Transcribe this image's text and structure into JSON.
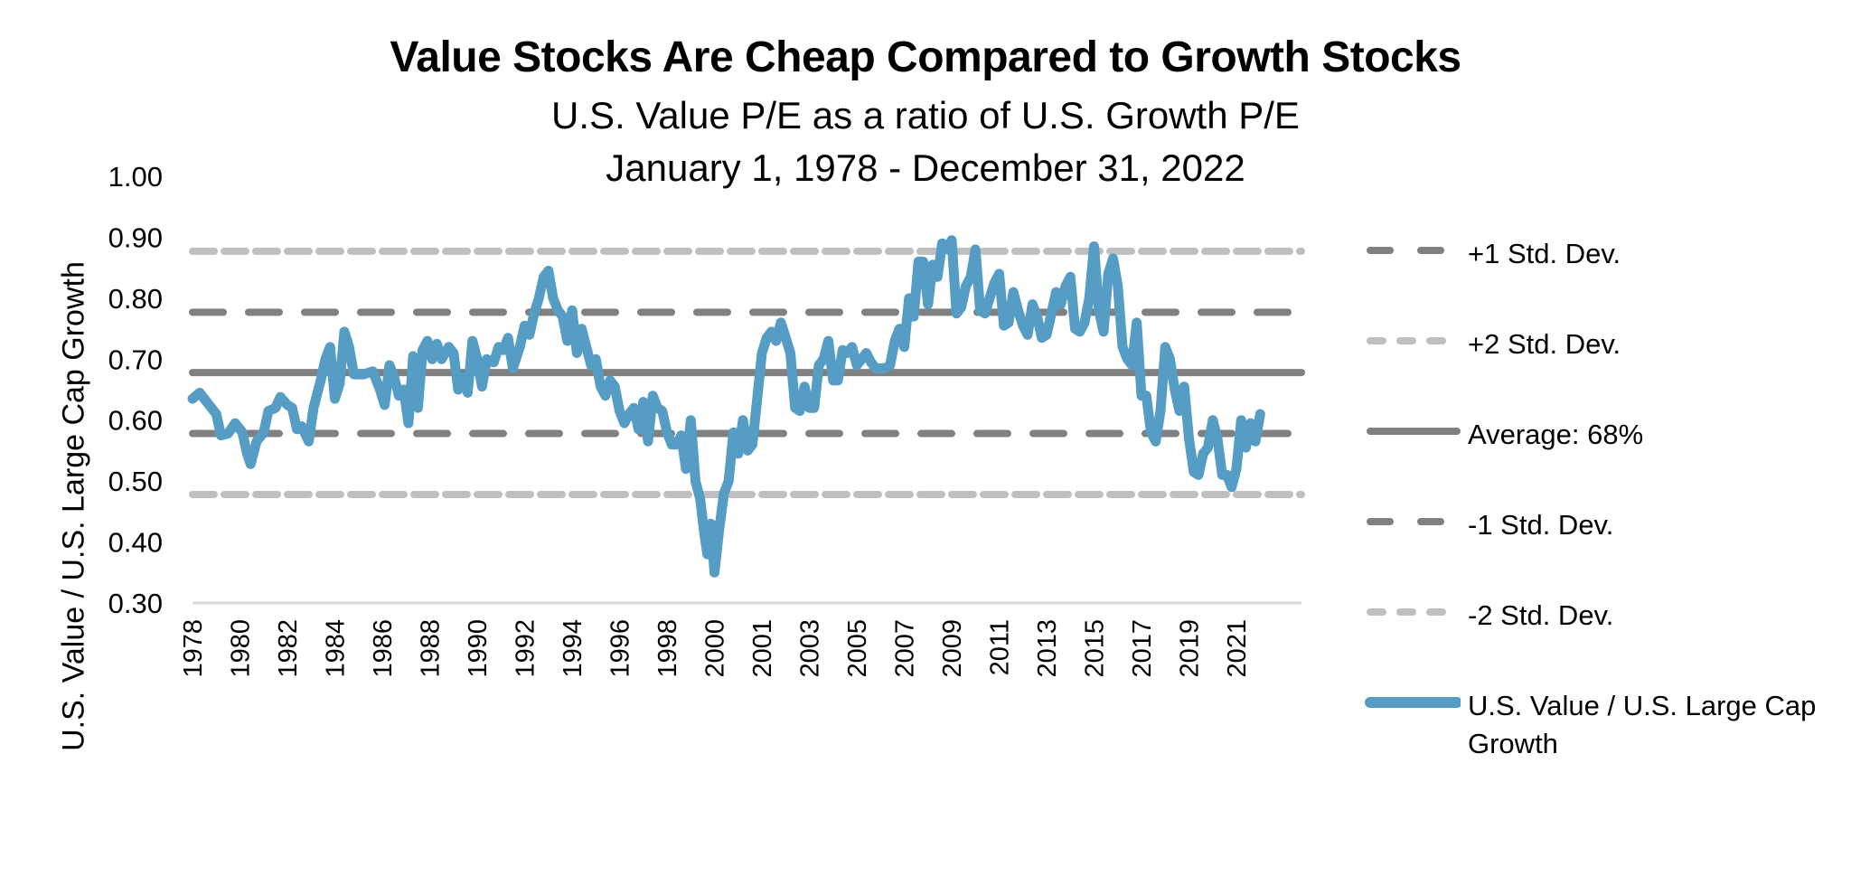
{
  "chart_data": {
    "type": "line",
    "title": "Value Stocks Are Cheap Compared to Growth Stocks",
    "subtitle": [
      "U.S. Value P/E as a ratio of U.S. Growth P/E",
      "January 1, 1978 - December 31, 2022"
    ],
    "xlabel": "",
    "ylabel": "U.S. Value / U.S. Large Cap Growth",
    "ylim": [
      0.3,
      1.0
    ],
    "yticks": [
      "1.00",
      "0.90",
      "0.80",
      "0.70",
      "0.60",
      "0.50",
      "0.40",
      "0.30"
    ],
    "ytick_values": [
      1.0,
      0.9,
      0.8,
      0.7,
      0.6,
      0.5,
      0.4,
      0.3
    ],
    "xticks": [
      "1978",
      "1980",
      "1982",
      "1984",
      "1986",
      "1988",
      "1990",
      "1992",
      "1994",
      "1996",
      "1998",
      "2000",
      "2001",
      "2003",
      "2005",
      "2007",
      "2009",
      "2011",
      "2013",
      "2015",
      "2017",
      "2019",
      "2021"
    ],
    "grid": false,
    "legend_position": "right",
    "reference_lines": [
      {
        "name": "+1 Std. Dev.",
        "value": 0.777,
        "style": "dash",
        "color": "#808080"
      },
      {
        "name": "+2 Std. Dev.",
        "value": 0.877,
        "style": "short-dash",
        "color": "#bfbfbf"
      },
      {
        "name": "Average: 68%",
        "value": 0.678,
        "style": "solid",
        "color": "#808080"
      },
      {
        "name": "-1 Std. Dev.",
        "value": 0.578,
        "style": "dash",
        "color": "#808080"
      },
      {
        "name": "-2 Std. Dev.",
        "value": 0.478,
        "style": "short-dash",
        "color": "#bfbfbf"
      }
    ],
    "series": [
      {
        "name": "U.S. Value / U.S. Large Cap Growth",
        "color": "#559dc4",
        "points": [
          [
            1978.0,
            0.635
          ],
          [
            1978.3,
            0.645
          ],
          [
            1978.6,
            0.63
          ],
          [
            1979.0,
            0.61
          ],
          [
            1979.2,
            0.575
          ],
          [
            1979.5,
            0.578
          ],
          [
            1979.8,
            0.595
          ],
          [
            1980.1,
            0.58
          ],
          [
            1980.3,
            0.545
          ],
          [
            1980.45,
            0.528
          ],
          [
            1980.7,
            0.565
          ],
          [
            1981.0,
            0.58
          ],
          [
            1981.2,
            0.615
          ],
          [
            1981.5,
            0.62
          ],
          [
            1981.7,
            0.638
          ],
          [
            1982.0,
            0.625
          ],
          [
            1982.2,
            0.62
          ],
          [
            1982.4,
            0.585
          ],
          [
            1982.6,
            0.59
          ],
          [
            1982.9,
            0.565
          ],
          [
            1983.1,
            0.62
          ],
          [
            1983.4,
            0.665
          ],
          [
            1983.6,
            0.7
          ],
          [
            1983.8,
            0.72
          ],
          [
            1984.0,
            0.635
          ],
          [
            1984.2,
            0.66
          ],
          [
            1984.4,
            0.745
          ],
          [
            1984.6,
            0.72
          ],
          [
            1984.8,
            0.675
          ],
          [
            1985.2,
            0.675
          ],
          [
            1985.6,
            0.68
          ],
          [
            1985.9,
            0.65
          ],
          [
            1986.1,
            0.625
          ],
          [
            1986.3,
            0.69
          ],
          [
            1986.5,
            0.67
          ],
          [
            1986.7,
            0.64
          ],
          [
            1986.9,
            0.65
          ],
          [
            1987.1,
            0.595
          ],
          [
            1987.3,
            0.705
          ],
          [
            1987.5,
            0.62
          ],
          [
            1987.7,
            0.715
          ],
          [
            1987.9,
            0.73
          ],
          [
            1988.1,
            0.7
          ],
          [
            1988.3,
            0.725
          ],
          [
            1988.5,
            0.7
          ],
          [
            1988.8,
            0.72
          ],
          [
            1989.0,
            0.71
          ],
          [
            1989.2,
            0.65
          ],
          [
            1989.4,
            0.67
          ],
          [
            1989.6,
            0.645
          ],
          [
            1989.8,
            0.73
          ],
          [
            1990.0,
            0.7
          ],
          [
            1990.2,
            0.655
          ],
          [
            1990.4,
            0.7
          ],
          [
            1990.7,
            0.695
          ],
          [
            1990.9,
            0.72
          ],
          [
            1991.1,
            0.715
          ],
          [
            1991.3,
            0.735
          ],
          [
            1991.5,
            0.685
          ],
          [
            1991.8,
            0.72
          ],
          [
            1992.0,
            0.755
          ],
          [
            1992.2,
            0.74
          ],
          [
            1992.4,
            0.775
          ],
          [
            1992.6,
            0.8
          ],
          [
            1992.8,
            0.835
          ],
          [
            1993.0,
            0.845
          ],
          [
            1993.2,
            0.8
          ],
          [
            1993.4,
            0.78
          ],
          [
            1993.6,
            0.77
          ],
          [
            1993.8,
            0.73
          ],
          [
            1994.0,
            0.78
          ],
          [
            1994.2,
            0.71
          ],
          [
            1994.4,
            0.75
          ],
          [
            1994.6,
            0.72
          ],
          [
            1994.8,
            0.69
          ],
          [
            1995.0,
            0.7
          ],
          [
            1995.2,
            0.655
          ],
          [
            1995.4,
            0.64
          ],
          [
            1995.6,
            0.665
          ],
          [
            1995.8,
            0.655
          ],
          [
            1996.0,
            0.615
          ],
          [
            1996.2,
            0.595
          ],
          [
            1996.4,
            0.61
          ],
          [
            1996.6,
            0.62
          ],
          [
            1996.8,
            0.585
          ],
          [
            1997.0,
            0.63
          ],
          [
            1997.2,
            0.565
          ],
          [
            1997.4,
            0.64
          ],
          [
            1997.6,
            0.62
          ],
          [
            1997.8,
            0.615
          ],
          [
            1998.0,
            0.58
          ],
          [
            1998.2,
            0.56
          ],
          [
            1998.4,
            0.56
          ],
          [
            1998.6,
            0.575
          ],
          [
            1998.8,
            0.52
          ],
          [
            1999.0,
            0.6
          ],
          [
            1999.2,
            0.5
          ],
          [
            1999.4,
            0.47
          ],
          [
            1999.55,
            0.42
          ],
          [
            1999.7,
            0.38
          ],
          [
            1999.85,
            0.43
          ],
          [
            2000.0,
            0.35
          ],
          [
            2000.1,
            0.42
          ],
          [
            2000.2,
            0.48
          ],
          [
            2000.3,
            0.5
          ],
          [
            2000.4,
            0.58
          ],
          [
            2000.5,
            0.545
          ],
          [
            2000.6,
            0.6
          ],
          [
            2000.7,
            0.55
          ],
          [
            2000.8,
            0.56
          ],
          [
            2000.9,
            0.635
          ],
          [
            2001.0,
            0.71
          ],
          [
            2001.2,
            0.735
          ],
          [
            2001.4,
            0.745
          ],
          [
            2001.6,
            0.73
          ],
          [
            2001.8,
            0.76
          ],
          [
            2002.0,
            0.735
          ],
          [
            2002.2,
            0.71
          ],
          [
            2002.4,
            0.62
          ],
          [
            2002.6,
            0.615
          ],
          [
            2002.8,
            0.655
          ],
          [
            2003.0,
            0.62
          ],
          [
            2003.2,
            0.62
          ],
          [
            2003.4,
            0.69
          ],
          [
            2003.6,
            0.7
          ],
          [
            2003.8,
            0.73
          ],
          [
            2004.0,
            0.665
          ],
          [
            2004.2,
            0.665
          ],
          [
            2004.4,
            0.715
          ],
          [
            2004.6,
            0.71
          ],
          [
            2004.8,
            0.72
          ],
          [
            2005.0,
            0.69
          ],
          [
            2005.2,
            0.7
          ],
          [
            2005.4,
            0.71
          ],
          [
            2005.6,
            0.695
          ],
          [
            2005.8,
            0.685
          ],
          [
            2006.0,
            0.685
          ],
          [
            2006.2,
            0.685
          ],
          [
            2006.4,
            0.69
          ],
          [
            2006.6,
            0.73
          ],
          [
            2006.8,
            0.75
          ],
          [
            2007.0,
            0.72
          ],
          [
            2007.2,
            0.8
          ],
          [
            2007.4,
            0.77
          ],
          [
            2007.6,
            0.86
          ],
          [
            2007.8,
            0.86
          ],
          [
            2008.0,
            0.79
          ],
          [
            2008.2,
            0.855
          ],
          [
            2008.4,
            0.835
          ],
          [
            2008.6,
            0.89
          ],
          [
            2008.8,
            0.88
          ],
          [
            2009.0,
            0.895
          ],
          [
            2009.2,
            0.775
          ],
          [
            2009.4,
            0.785
          ],
          [
            2009.6,
            0.82
          ],
          [
            2009.8,
            0.835
          ],
          [
            2010.0,
            0.88
          ],
          [
            2010.2,
            0.78
          ],
          [
            2010.4,
            0.775
          ],
          [
            2010.6,
            0.8
          ],
          [
            2010.8,
            0.825
          ],
          [
            2011.0,
            0.84
          ],
          [
            2011.2,
            0.755
          ],
          [
            2011.4,
            0.76
          ],
          [
            2011.6,
            0.81
          ],
          [
            2011.8,
            0.78
          ],
          [
            2012.0,
            0.755
          ],
          [
            2012.2,
            0.74
          ],
          [
            2012.4,
            0.79
          ],
          [
            2012.6,
            0.77
          ],
          [
            2012.8,
            0.735
          ],
          [
            2013.0,
            0.74
          ],
          [
            2013.2,
            0.775
          ],
          [
            2013.4,
            0.81
          ],
          [
            2013.6,
            0.79
          ],
          [
            2013.8,
            0.82
          ],
          [
            2014.0,
            0.835
          ],
          [
            2014.2,
            0.75
          ],
          [
            2014.4,
            0.745
          ],
          [
            2014.6,
            0.76
          ],
          [
            2014.8,
            0.8
          ],
          [
            2015.0,
            0.885
          ],
          [
            2015.2,
            0.78
          ],
          [
            2015.4,
            0.745
          ],
          [
            2015.6,
            0.84
          ],
          [
            2015.8,
            0.865
          ],
          [
            2016.0,
            0.82
          ],
          [
            2016.2,
            0.72
          ],
          [
            2016.4,
            0.7
          ],
          [
            2016.6,
            0.69
          ],
          [
            2016.8,
            0.76
          ],
          [
            2017.0,
            0.64
          ],
          [
            2017.2,
            0.64
          ],
          [
            2017.4,
            0.58
          ],
          [
            2017.6,
            0.565
          ],
          [
            2017.8,
            0.615
          ],
          [
            2018.0,
            0.72
          ],
          [
            2018.2,
            0.7
          ],
          [
            2018.4,
            0.65
          ],
          [
            2018.6,
            0.615
          ],
          [
            2018.8,
            0.655
          ],
          [
            2019.0,
            0.57
          ],
          [
            2019.2,
            0.515
          ],
          [
            2019.4,
            0.51
          ],
          [
            2019.6,
            0.545
          ],
          [
            2019.8,
            0.555
          ],
          [
            2020.0,
            0.6
          ],
          [
            2020.2,
            0.57
          ],
          [
            2020.4,
            0.51
          ],
          [
            2020.6,
            0.51
          ],
          [
            2020.8,
            0.49
          ],
          [
            2021.0,
            0.52
          ],
          [
            2021.2,
            0.6
          ],
          [
            2021.4,
            0.555
          ],
          [
            2021.6,
            0.595
          ],
          [
            2021.8,
            0.565
          ],
          [
            2022.0,
            0.61
          ]
        ]
      }
    ]
  },
  "legend": {
    "items": [
      {
        "label": "+1 Std. Dev."
      },
      {
        "label": "+2 Std. Dev."
      },
      {
        "label": "Average: 68%"
      },
      {
        "label": "-1 Std. Dev."
      },
      {
        "label": "-2 Std. Dev."
      },
      {
        "label": "U.S. Value / U.S. Large Cap Growth"
      }
    ]
  }
}
